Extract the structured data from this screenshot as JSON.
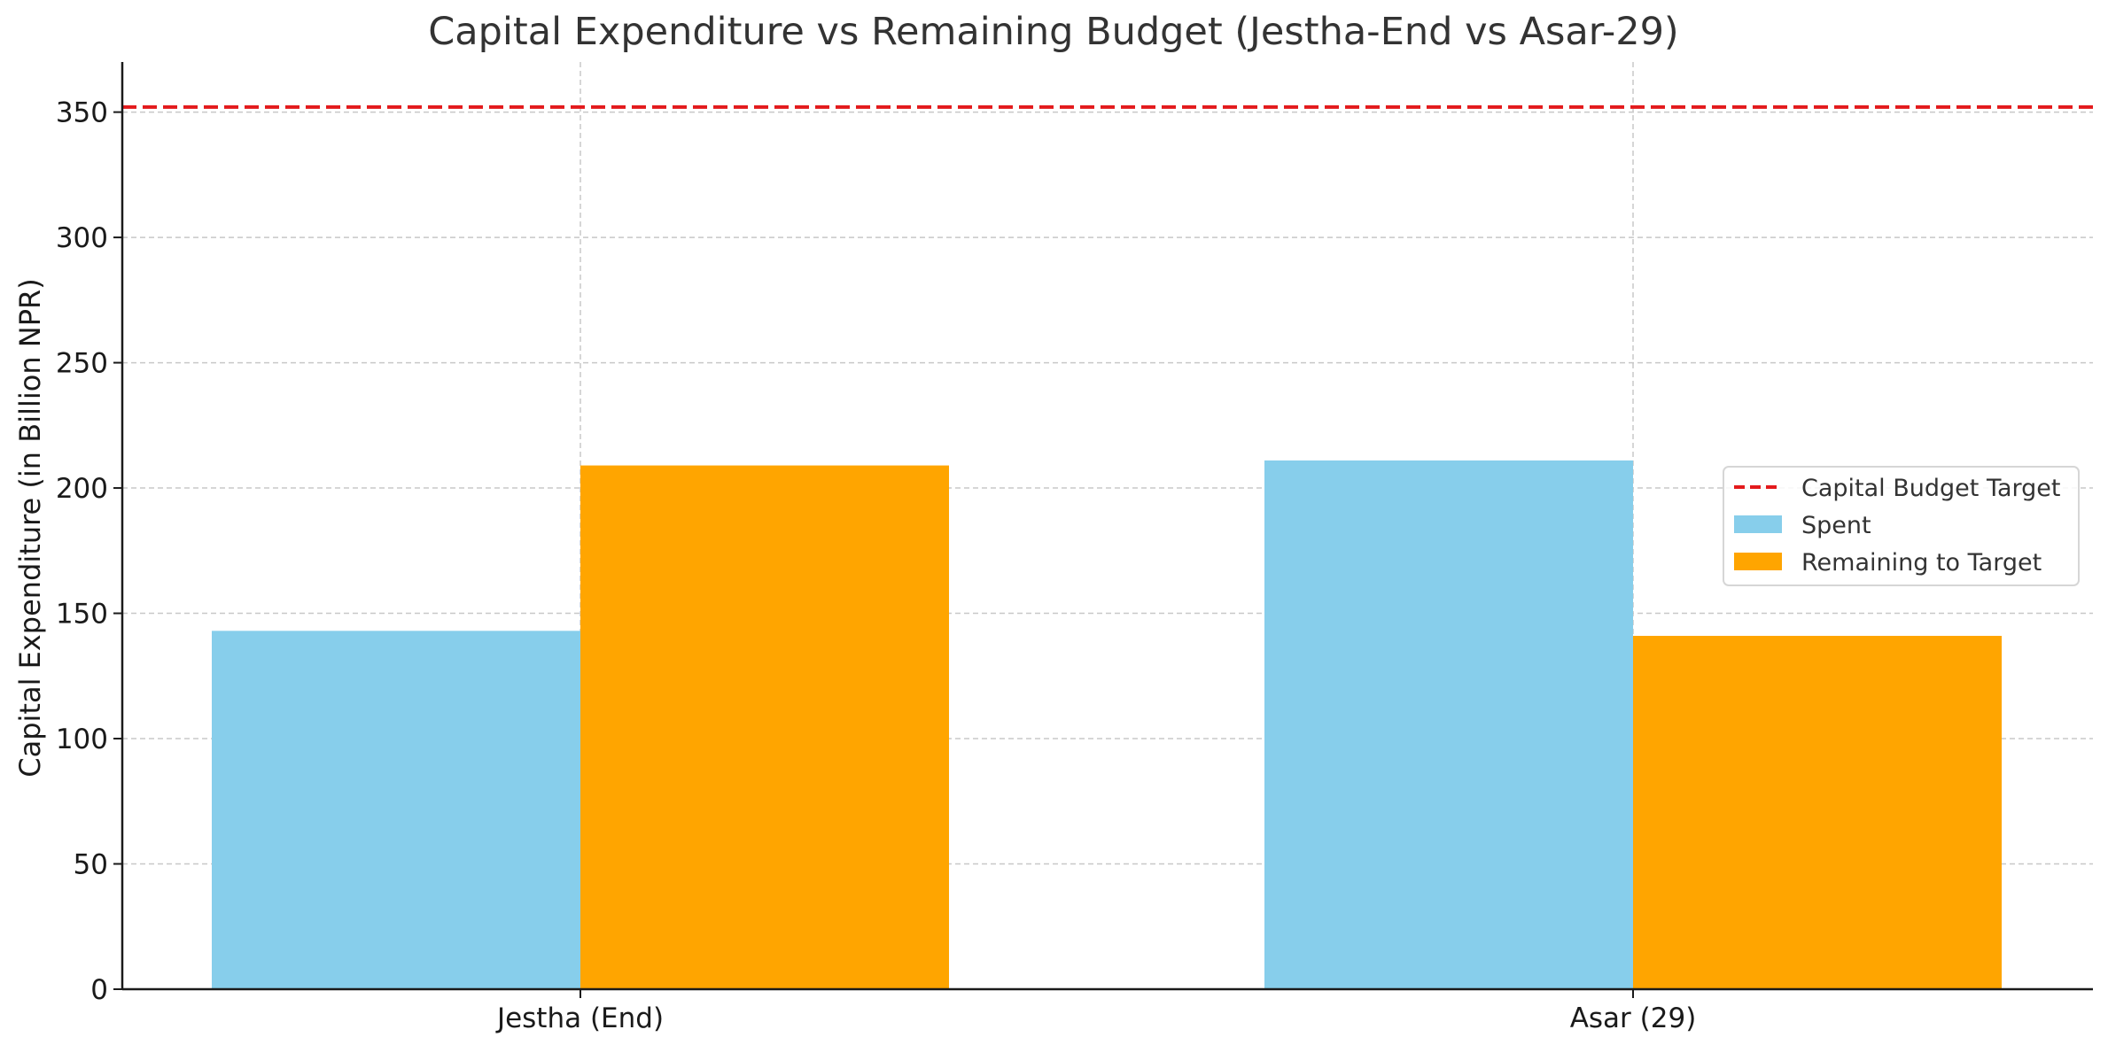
{
  "chart_data": {
    "type": "bar",
    "title": "Capital Expenditure vs Remaining Budget (Jestha-End vs Asar-29)",
    "xlabel": "",
    "ylabel": "Capital Expenditure (in Billion NPR)",
    "categories": [
      "Jestha (End)",
      "Asar (29)"
    ],
    "series": [
      {
        "name": "Spent",
        "values": [
          143,
          211
        ],
        "color": "#87CEEB"
      },
      {
        "name": "Remaining to Target",
        "values": [
          209,
          141
        ],
        "color": "#FFA500"
      }
    ],
    "reference_line": {
      "name": "Capital Budget Target",
      "value": 352,
      "color": "#E31A1C",
      "style": "dashed"
    },
    "ylim": [
      0,
      370
    ],
    "yticks": [
      0,
      50,
      100,
      150,
      200,
      250,
      300,
      350
    ],
    "grid": true,
    "legend_position": "center-right"
  }
}
